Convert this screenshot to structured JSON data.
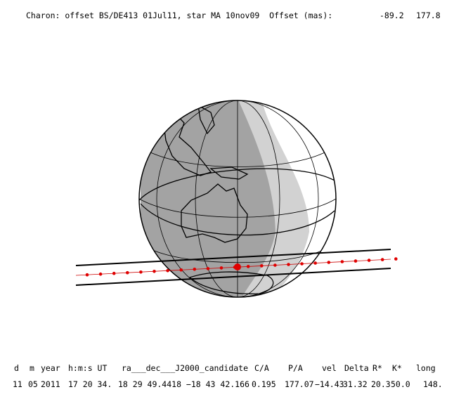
{
  "header": {
    "title": "Charon: offset BS/DE413 01Jul11, star MA 10nov09  Offset (mas):",
    "offset_ra": "-89.2",
    "offset_dec": "177.8"
  },
  "table": {
    "columns": [
      "d",
      "m",
      "year",
      "h:m:s UT",
      "ra___dec___J2000_candidate",
      "C/A",
      "P/A",
      "vel",
      "Delta",
      "R*",
      "K*",
      "long"
    ],
    "rows": [
      [
        "11",
        "05",
        "2011",
        "17 20 34.",
        "18 29 49.4418 −18 43 42.166",
        "0.195",
        "177.07",
        "−14.43",
        "31.32",
        "20.3",
        "50.0",
        "148."
      ]
    ]
  }
}
